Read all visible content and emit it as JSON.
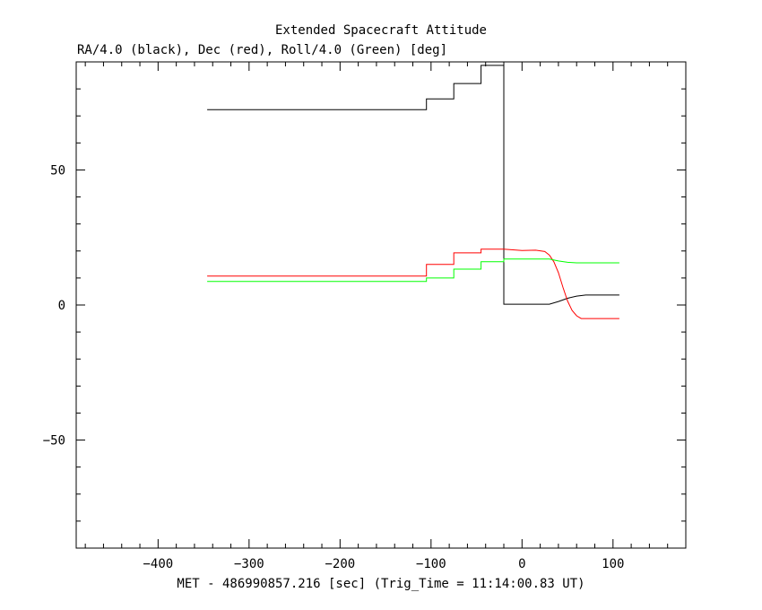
{
  "chart_data": {
    "type": "line",
    "title": "Extended Spacecraft Attitude",
    "subtitle": "RA/4.0 (black), Dec (red), Roll/4.0 (Green) [deg]",
    "xlabel": "MET - 486990857.216 [sec] (Trig_Time = 11:14:00.83 UT)",
    "ylabel": "",
    "xlim": [
      -490,
      180
    ],
    "ylim": [
      -90,
      90
    ],
    "x_ticks": [
      -400,
      -300,
      -200,
      -100,
      0,
      100
    ],
    "x_tick_labels": [
      "−400",
      "−300",
      "−200",
      "−100",
      "0",
      "100"
    ],
    "y_ticks": [
      -50,
      0,
      50
    ],
    "y_tick_labels": [
      "−50",
      "0",
      "50"
    ],
    "grid": false,
    "step": true,
    "series": [
      {
        "color": "#000000",
        "points": [
          [
            -346,
            72.3
          ],
          [
            -105,
            72.3
          ],
          [
            -105,
            76.3
          ],
          [
            -75,
            76.3
          ],
          [
            -75,
            82.0
          ],
          [
            -45,
            82.0
          ],
          [
            -45,
            88.7
          ],
          [
            -20,
            88.7
          ],
          [
            -20,
            0.3
          ],
          [
            30,
            0.3
          ],
          [
            40,
            1.3
          ],
          [
            50,
            2.5
          ],
          [
            60,
            3.3
          ],
          [
            70,
            3.7
          ],
          [
            107,
            3.7
          ]
        ]
      },
      {
        "color": "#ff0000",
        "points": [
          [
            -346,
            10.7
          ],
          [
            -105,
            10.7
          ],
          [
            -105,
            15.0
          ],
          [
            -75,
            15.0
          ],
          [
            -75,
            19.3
          ],
          [
            -45,
            19.3
          ],
          [
            -45,
            20.7
          ],
          [
            -20,
            20.7
          ],
          [
            0,
            20.2
          ],
          [
            15,
            20.3
          ],
          [
            25,
            19.8
          ],
          [
            30,
            18.5
          ],
          [
            35,
            16.0
          ],
          [
            40,
            12.0
          ],
          [
            45,
            6.5
          ],
          [
            50,
            1.5
          ],
          [
            55,
            -2.0
          ],
          [
            60,
            -4.0
          ],
          [
            65,
            -5.0
          ],
          [
            107,
            -5.0
          ]
        ]
      },
      {
        "color": "#00ff00",
        "points": [
          [
            -346,
            8.7
          ],
          [
            -105,
            8.7
          ],
          [
            -105,
            10.0
          ],
          [
            -75,
            10.0
          ],
          [
            -75,
            13.3
          ],
          [
            -45,
            13.3
          ],
          [
            -45,
            16.0
          ],
          [
            -20,
            16.0
          ],
          [
            -20,
            17.0
          ],
          [
            30,
            17.0
          ],
          [
            40,
            16.3
          ],
          [
            50,
            15.8
          ],
          [
            60,
            15.6
          ],
          [
            107,
            15.6
          ]
        ]
      }
    ]
  }
}
